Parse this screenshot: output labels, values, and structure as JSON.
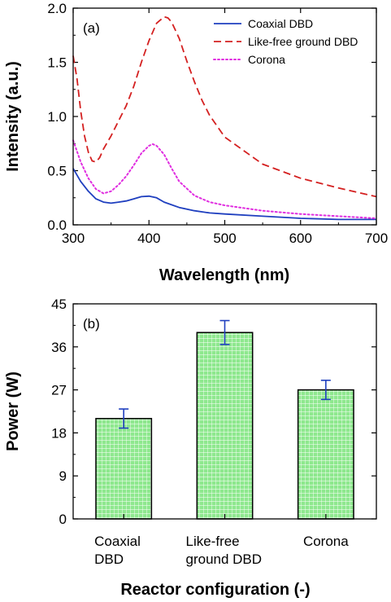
{
  "chart_data": [
    {
      "type": "line",
      "panel_label": "(a)",
      "xlabel": "Wavelength (nm)",
      "ylabel": "Intensity (a.u.)",
      "xlim": [
        300,
        700
      ],
      "ylim": [
        0,
        2.0
      ],
      "xticks": [
        "300",
        "400",
        "500",
        "600",
        "700"
      ],
      "yticks": [
        "0.0",
        "0.5",
        "1.0",
        "1.5",
        "2.0"
      ],
      "legend_position": "top-right",
      "series": [
        {
          "name": "Coaxial DBD",
          "color": "#1f3fbf",
          "dash": "solid",
          "x": [
            300,
            310,
            320,
            330,
            340,
            350,
            360,
            370,
            380,
            390,
            400,
            410,
            420,
            440,
            460,
            480,
            500,
            550,
            600,
            650,
            700
          ],
          "y": [
            0.52,
            0.4,
            0.31,
            0.24,
            0.21,
            0.2,
            0.21,
            0.22,
            0.24,
            0.26,
            0.265,
            0.25,
            0.21,
            0.16,
            0.13,
            0.11,
            0.1,
            0.08,
            0.06,
            0.05,
            0.05
          ]
        },
        {
          "name": "Like-free ground DBD",
          "color": "#d42020",
          "dash": "dashed",
          "x": [
            300,
            305,
            310,
            315,
            320,
            325,
            330,
            335,
            340,
            350,
            360,
            370,
            380,
            390,
            400,
            410,
            420,
            425,
            430,
            440,
            450,
            460,
            470,
            480,
            500,
            550,
            600,
            650,
            700
          ],
          "y": [
            1.56,
            1.35,
            1.05,
            0.82,
            0.67,
            0.59,
            0.58,
            0.62,
            0.7,
            0.82,
            0.96,
            1.1,
            1.28,
            1.5,
            1.7,
            1.86,
            1.92,
            1.91,
            1.87,
            1.72,
            1.51,
            1.32,
            1.15,
            1.01,
            0.81,
            0.56,
            0.43,
            0.34,
            0.26
          ]
        },
        {
          "name": "Corona",
          "color": "#e02ee0",
          "dash": "dotted",
          "x": [
            300,
            310,
            320,
            330,
            340,
            350,
            360,
            370,
            380,
            390,
            400,
            405,
            410,
            420,
            430,
            440,
            460,
            480,
            500,
            550,
            600,
            650,
            700
          ],
          "y": [
            0.78,
            0.58,
            0.43,
            0.33,
            0.29,
            0.31,
            0.37,
            0.45,
            0.55,
            0.66,
            0.73,
            0.745,
            0.73,
            0.65,
            0.52,
            0.4,
            0.27,
            0.21,
            0.18,
            0.13,
            0.1,
            0.08,
            0.06
          ]
        }
      ]
    },
    {
      "type": "bar",
      "panel_label": "(b)",
      "xlabel": "Reactor configuration (-)",
      "ylabel": "Power (W)",
      "ylim": [
        0,
        45
      ],
      "yticks": [
        "0",
        "9",
        "18",
        "27",
        "36",
        "45"
      ],
      "categories": [
        [
          "Coaxial",
          "DBD"
        ],
        [
          "Like-free",
          "ground DBD"
        ],
        [
          "Corona"
        ]
      ],
      "values": [
        21,
        39,
        27
      ],
      "errors": [
        2,
        2.5,
        2
      ],
      "bar_color": "#8ee88e",
      "bar_edge": "#000000",
      "error_color": "#1f3fbf"
    }
  ]
}
